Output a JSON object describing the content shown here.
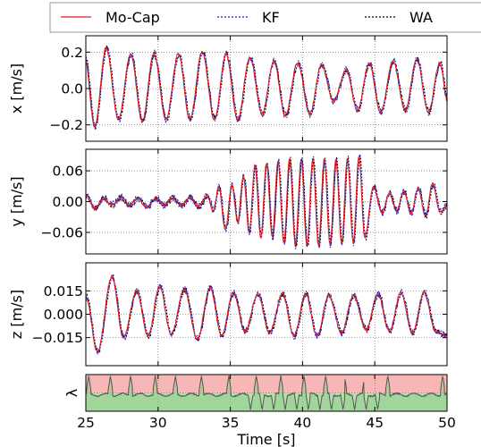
{
  "chart_data": {
    "type": "line",
    "legend": {
      "placement": "top",
      "entries": [
        {
          "label": "Mo-Cap",
          "color": "#e41a1c",
          "style": "solid"
        },
        {
          "label": "KF",
          "color": "#1f1fd6",
          "style": "dotted"
        },
        {
          "label": "WA",
          "color": "#000000",
          "style": "dotted"
        }
      ]
    },
    "xlabel": "Time [s]",
    "xlim": [
      25,
      50
    ],
    "xticks": [
      "25",
      "30",
      "35",
      "40",
      "45",
      "50"
    ],
    "grid": true,
    "panels": [
      {
        "key": "x",
        "ylabel": "x [m/s]",
        "ylim": [
          -0.29,
          0.29
        ],
        "yticks": [
          {
            "v": 0.2,
            "label": "0.2"
          },
          {
            "v": 0.0,
            "label": "0.0"
          },
          {
            "v": -0.2,
            "label": "−0.2"
          }
        ],
        "peaks": {
          "t": [
            24.95,
            25.6,
            26.4,
            27.25,
            28.1,
            28.9,
            29.7,
            30.55,
            31.4,
            32.2,
            33.05,
            33.9,
            34.7,
            35.5,
            36.35,
            37.2,
            38.0,
            38.8,
            39.65,
            40.5,
            41.3,
            42.15,
            43.0,
            43.8,
            44.6,
            45.4,
            46.25,
            47.1,
            47.9,
            48.7,
            49.5,
            50.0
          ],
          "v": [
            0.16,
            -0.21,
            0.22,
            -0.17,
            0.19,
            -0.18,
            0.19,
            -0.17,
            0.19,
            -0.17,
            0.2,
            -0.17,
            0.19,
            -0.17,
            0.17,
            -0.14,
            0.15,
            -0.15,
            0.14,
            -0.14,
            0.13,
            -0.07,
            0.1,
            -0.12,
            0.14,
            -0.13,
            0.15,
            -0.12,
            0.16,
            -0.13,
            0.14,
            -0.06
          ]
        }
      },
      {
        "key": "y",
        "ylabel": "y [m/s]",
        "ylim": [
          -0.102,
          0.102
        ],
        "yticks": [
          {
            "v": 0.06,
            "label": "0.06"
          },
          {
            "v": 0.0,
            "label": "0.00"
          },
          {
            "v": -0.06,
            "label": "−0.06"
          }
        ],
        "peaks": {
          "t": [
            25.0,
            25.6,
            26.2,
            26.8,
            27.4,
            28.0,
            28.6,
            29.2,
            29.8,
            30.4,
            31.0,
            31.6,
            32.2,
            32.8,
            33.4,
            33.8,
            34.2,
            34.65,
            35.1,
            35.5,
            35.9,
            36.3,
            36.7,
            37.1,
            37.5,
            37.9,
            38.3,
            38.7,
            39.1,
            39.5,
            39.9,
            40.3,
            40.7,
            41.1,
            41.5,
            41.9,
            42.3,
            42.7,
            43.1,
            43.5,
            43.9,
            44.3,
            44.9,
            45.5,
            46.0,
            46.5,
            47.0,
            47.5,
            48.0,
            48.5,
            49.0,
            49.5,
            50.0
          ],
          "v": [
            0.012,
            -0.013,
            0.006,
            -0.006,
            0.008,
            -0.008,
            0.006,
            -0.011,
            0.006,
            -0.007,
            0.007,
            -0.008,
            0.008,
            -0.01,
            0.012,
            -0.018,
            0.028,
            -0.055,
            0.032,
            -0.04,
            0.05,
            -0.06,
            0.07,
            -0.07,
            0.075,
            -0.07,
            0.078,
            -0.08,
            0.082,
            -0.086,
            0.082,
            -0.086,
            0.082,
            -0.086,
            0.082,
            -0.084,
            0.082,
            -0.082,
            0.084,
            -0.08,
            0.088,
            -0.07,
            0.028,
            -0.022,
            0.016,
            -0.018,
            0.02,
            -0.022,
            0.026,
            -0.028,
            0.034,
            -0.02,
            -0.008
          ]
        }
      },
      {
        "key": "z",
        "ylabel": "z [m/s]",
        "ylim": [
          -0.033,
          0.033
        ],
        "yticks": [
          {
            "v": 0.015,
            "label": "0.015"
          },
          {
            "v": 0.0,
            "label": "0.000"
          },
          {
            "v": -0.015,
            "label": "−0.015"
          }
        ],
        "peaks": {
          "t": [
            25.0,
            25.8,
            26.8,
            27.6,
            28.5,
            29.3,
            30.1,
            30.9,
            31.8,
            32.7,
            33.6,
            34.4,
            35.2,
            36.0,
            36.9,
            37.7,
            38.6,
            39.4,
            40.2,
            41.0,
            41.8,
            42.7,
            43.5,
            44.4,
            45.2,
            46.0,
            46.8,
            47.6,
            48.4,
            49.2,
            50.0
          ],
          "v": [
            0.011,
            -0.024,
            0.024,
            -0.015,
            0.015,
            -0.014,
            0.018,
            -0.013,
            0.016,
            -0.016,
            0.017,
            -0.014,
            0.014,
            -0.011,
            0.013,
            -0.012,
            0.013,
            -0.014,
            0.013,
            -0.014,
            0.012,
            -0.012,
            0.012,
            -0.01,
            0.013,
            -0.011,
            0.014,
            -0.012,
            0.014,
            -0.011,
            -0.014
          ]
        }
      }
    ],
    "lambda_panel": {
      "ylabel": "λ",
      "regions": [
        {
          "name": "high",
          "color": "#f7b7b7"
        },
        {
          "name": "low",
          "color": "#b6deb0"
        }
      ],
      "line_color": "#555555",
      "baseline": 0.45,
      "spikes_up_t": [
        25.2,
        26.7,
        28.1,
        29.8,
        31.2,
        33.0,
        34.9,
        36.8,
        38.5,
        40.1,
        41.6,
        42.9,
        44.3,
        45.9,
        49.7
      ],
      "spikes_down_t": [
        36.4,
        37.2,
        38.0,
        38.8,
        39.6,
        40.4,
        41.2,
        42.0,
        42.8,
        43.6,
        44.4,
        45.2
      ]
    }
  }
}
